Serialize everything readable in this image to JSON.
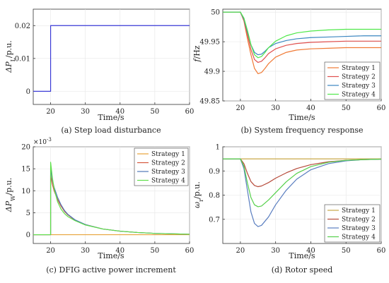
{
  "palette": {
    "strategy1": "#e8a33a",
    "strategy2": "#d6573c",
    "strategy3": "#4f78b8",
    "strategy4": "#5ee04a",
    "step": "#3a3ad6",
    "freq1": "#f07a35",
    "freq2": "#e0504e",
    "freq3": "#3a86c0",
    "freq4": "#4fe84a",
    "rotor1": "#c8a848",
    "rotor2": "#b64a3a",
    "rotor3": "#5a7ec0",
    "rotor4": "#55d04a"
  },
  "chart_data": [
    {
      "type": "line",
      "panel": "a",
      "caption": "(a) Step load disturbance",
      "xlabel": "Time/s",
      "ylabel": "ΔP",
      "ylabel_sub": "L",
      "ylabel_unit": "/p.u.",
      "xlim": [
        15,
        60
      ],
      "ylim": [
        -0.004,
        0.025
      ],
      "xticks": [
        "20",
        "30",
        "40",
        "50",
        "60"
      ],
      "yticks": [
        "0",
        "0.01",
        "0.02"
      ],
      "ytick_values": [
        0,
        0.01,
        0.02
      ],
      "series": [
        {
          "color_key": "step",
          "x": [
            15,
            20,
            20,
            60
          ],
          "y": [
            0,
            0,
            0.02,
            0.02
          ]
        }
      ]
    },
    {
      "type": "line",
      "panel": "b",
      "caption": "(b) System frequency response",
      "xlabel": "Time/s",
      "ylabel": "f",
      "ylabel_unit": "/Hz",
      "xlim": [
        15,
        60
      ],
      "ylim": [
        49.85,
        50.005
      ],
      "xticks": [
        "20",
        "30",
        "40",
        "50",
        "60"
      ],
      "yticks": [
        "49.85",
        "49.9",
        "49.95",
        "50"
      ],
      "ytick_values": [
        49.85,
        49.9,
        49.95,
        50
      ],
      "legend": [
        "Strategy 1",
        "Strategy 2",
        "Strategy 3",
        "Strategy 4"
      ],
      "legend_position": "bottom-right",
      "series": [
        {
          "name": "Strategy 1",
          "color_key": "freq1",
          "x": [
            15,
            20,
            21,
            22,
            23,
            24,
            25,
            26,
            27,
            28,
            30,
            33,
            36,
            40,
            45,
            50,
            55,
            60
          ],
          "y": [
            50,
            50,
            49.985,
            49.955,
            49.928,
            49.905,
            49.896,
            49.898,
            49.905,
            49.913,
            49.924,
            49.932,
            49.936,
            49.938,
            49.939,
            49.94,
            49.94,
            49.94
          ]
        },
        {
          "name": "Strategy 2",
          "color_key": "freq2",
          "x": [
            15,
            20,
            21,
            22,
            23,
            24,
            25,
            26,
            27,
            28,
            30,
            33,
            36,
            40,
            45,
            50,
            55,
            60
          ],
          "y": [
            50,
            50,
            49.987,
            49.962,
            49.937,
            49.92,
            49.915,
            49.917,
            49.923,
            49.93,
            49.938,
            49.944,
            49.947,
            49.949,
            49.95,
            49.951,
            49.951,
            49.951
          ]
        },
        {
          "name": "Strategy 3",
          "color_key": "freq3",
          "x": [
            15,
            20,
            21,
            22,
            23,
            24,
            25,
            26,
            27,
            28,
            30,
            33,
            36,
            40,
            45,
            50,
            55,
            60
          ],
          "y": [
            50,
            50,
            49.988,
            49.966,
            49.945,
            49.932,
            49.928,
            49.929,
            49.934,
            49.94,
            49.947,
            49.952,
            49.955,
            49.957,
            49.958,
            49.959,
            49.96,
            49.96
          ]
        },
        {
          "name": "Strategy 4",
          "color_key": "freq4",
          "x": [
            15,
            20,
            21,
            22,
            23,
            24,
            25,
            26,
            27,
            28,
            30,
            33,
            36,
            40,
            45,
            50,
            55,
            60
          ],
          "y": [
            50,
            50,
            49.99,
            49.969,
            49.945,
            49.928,
            49.923,
            49.925,
            49.932,
            49.94,
            49.951,
            49.96,
            49.965,
            49.968,
            49.97,
            49.971,
            49.971,
            49.971
          ]
        }
      ]
    },
    {
      "type": "line",
      "panel": "c",
      "caption": "(c) DFIG active power increment",
      "xlabel": "Time/s",
      "ylabel": "ΔP",
      "ylabel_sub": "W",
      "ylabel_unit": "/p.u.",
      "yexponent": "-3",
      "xlim": [
        15,
        60
      ],
      "ylim": [
        -2,
        20
      ],
      "xticks": [
        "20",
        "30",
        "40",
        "50",
        "60"
      ],
      "yticks": [
        "0",
        "5",
        "10",
        "15",
        "20"
      ],
      "ytick_values": [
        0,
        5,
        10,
        15,
        20
      ],
      "legend": [
        "Strategy 1",
        "Strategy 2",
        "Strategy 3",
        "Strategy 4"
      ],
      "legend_position": "top-right",
      "series": [
        {
          "name": "Strategy 1",
          "color_key": "strategy1",
          "x": [
            15,
            20,
            60
          ],
          "y": [
            0,
            0,
            0
          ]
        },
        {
          "name": "Strategy 2",
          "color_key": "strategy2",
          "x": [
            15,
            20,
            20,
            20.5,
            21,
            22,
            23,
            24,
            25,
            27,
            30,
            35,
            40,
            45,
            50,
            55,
            60
          ],
          "y": [
            0,
            0,
            13.5,
            11.5,
            10,
            8,
            6.5,
            5.3,
            4.5,
            3.3,
            2.3,
            1.3,
            0.8,
            0.5,
            0.3,
            0.2,
            0.1
          ]
        },
        {
          "name": "Strategy 3",
          "color_key": "strategy3",
          "x": [
            15,
            20,
            20,
            20.5,
            21,
            22,
            23,
            24,
            25,
            27,
            30,
            35,
            40,
            45,
            50,
            55,
            60
          ],
          "y": [
            0,
            0,
            15,
            12.5,
            10.8,
            8.5,
            6.8,
            5.5,
            4.6,
            3.4,
            2.3,
            1.3,
            0.8,
            0.5,
            0.3,
            0.2,
            0.1
          ]
        },
        {
          "name": "Strategy 4",
          "color_key": "strategy4",
          "x": [
            15,
            20,
            20,
            20.5,
            21,
            22,
            23,
            24,
            25,
            27,
            30,
            35,
            40,
            45,
            50,
            55,
            60
          ],
          "y": [
            0,
            0,
            16.5,
            13,
            10.5,
            7.5,
            5.8,
            4.8,
            4.1,
            3.2,
            2.2,
            1.3,
            0.8,
            0.5,
            0.3,
            0.2,
            0.1
          ]
        }
      ]
    },
    {
      "type": "line",
      "panel": "d",
      "caption": "(d) Rotor speed",
      "xlabel": "Time/s",
      "ylabel": "ω",
      "ylabel_sub": "r",
      "ylabel_unit": "/p.u.",
      "xlim": [
        15,
        60
      ],
      "ylim": [
        0.6,
        1.0
      ],
      "xticks": [
        "20",
        "30",
        "40",
        "50",
        "60"
      ],
      "yticks": [
        "0.7",
        "0.8",
        "0.9",
        "1"
      ],
      "ytick_values": [
        0.7,
        0.8,
        0.9,
        1.0
      ],
      "legend": [
        "Strategy 1",
        "Strategy 2",
        "Strategy 3",
        "Strategy 4"
      ],
      "legend_position": "bottom-right",
      "series": [
        {
          "name": "Strategy 1",
          "color_key": "rotor1",
          "x": [
            15,
            20,
            60
          ],
          "y": [
            0.95,
            0.95,
            0.95
          ]
        },
        {
          "name": "Strategy 2",
          "color_key": "rotor2",
          "x": [
            15,
            20,
            21,
            22,
            23,
            24,
            25,
            26,
            28,
            30,
            33,
            36,
            40,
            45,
            50,
            55,
            60
          ],
          "y": [
            0.95,
            0.95,
            0.93,
            0.89,
            0.856,
            0.84,
            0.835,
            0.838,
            0.852,
            0.87,
            0.892,
            0.91,
            0.926,
            0.938,
            0.944,
            0.947,
            0.949
          ]
        },
        {
          "name": "Strategy 3",
          "color_key": "rotor3",
          "x": [
            15,
            20,
            21,
            22,
            23,
            24,
            25,
            26,
            28,
            30,
            33,
            36,
            40,
            45,
            50,
            55,
            60
          ],
          "y": [
            0.95,
            0.95,
            0.91,
            0.82,
            0.73,
            0.683,
            0.67,
            0.675,
            0.71,
            0.76,
            0.82,
            0.866,
            0.905,
            0.93,
            0.942,
            0.947,
            0.949
          ]
        },
        {
          "name": "Strategy 4",
          "color_key": "rotor4",
          "x": [
            15,
            20,
            21,
            22,
            23,
            24,
            25,
            26,
            28,
            30,
            33,
            36,
            40,
            45,
            50,
            55,
            60
          ],
          "y": [
            0.95,
            0.95,
            0.92,
            0.85,
            0.79,
            0.76,
            0.752,
            0.755,
            0.78,
            0.81,
            0.855,
            0.89,
            0.918,
            0.936,
            0.944,
            0.947,
            0.949
          ]
        }
      ]
    }
  ]
}
